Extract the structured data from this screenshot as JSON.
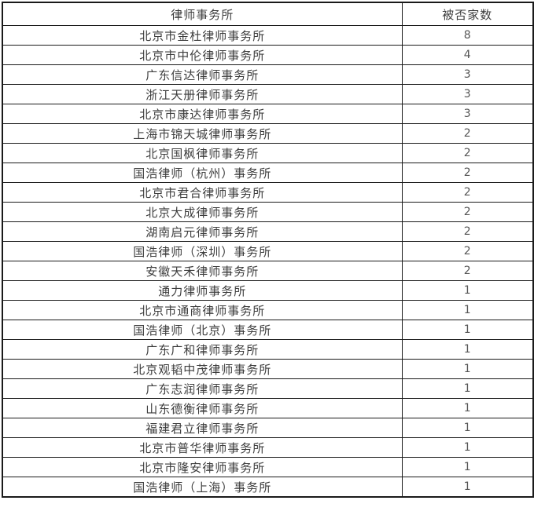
{
  "colors": {
    "border": "#1a1a1a",
    "text": "#3d3d3d",
    "count_text": "#555555",
    "background": "#ffffff"
  },
  "table": {
    "columns": {
      "firm": "律师事务所",
      "count": "被否家数"
    },
    "rows": [
      {
        "firm": "北京市金杜律师事务所",
        "count": "8"
      },
      {
        "firm": "北京市中伦律师事务所",
        "count": "4"
      },
      {
        "firm": "广东信达律师事务所",
        "count": "3"
      },
      {
        "firm": "浙江天册律师事务所",
        "count": "3"
      },
      {
        "firm": "北京市康达律师事务所",
        "count": "3"
      },
      {
        "firm": "上海市锦天城律师事务所",
        "count": "2"
      },
      {
        "firm": "北京国枫律师事务所",
        "count": "2"
      },
      {
        "firm": "国浩律师（杭州）事务所",
        "count": "2"
      },
      {
        "firm": "北京市君合律师事务所",
        "count": "2"
      },
      {
        "firm": "北京大成律师事务所",
        "count": "2"
      },
      {
        "firm": "湖南启元律师事务所",
        "count": "2"
      },
      {
        "firm": "国浩律师（深圳）事务所",
        "count": "2"
      },
      {
        "firm": "安徽天禾律师事务所",
        "count": "2"
      },
      {
        "firm": "通力律师事务所",
        "count": "1"
      },
      {
        "firm": "北京市通商律师事务所",
        "count": "1"
      },
      {
        "firm": "国浩律师（北京）事务所",
        "count": "1"
      },
      {
        "firm": "广东广和律师事务所",
        "count": "1"
      },
      {
        "firm": "北京观韬中茂律师事务所",
        "count": "1"
      },
      {
        "firm": "广东志润律师事务所",
        "count": "1"
      },
      {
        "firm": "山东德衡律师事务所",
        "count": "1"
      },
      {
        "firm": "福建君立律师事务所",
        "count": "1"
      },
      {
        "firm": "北京市普华律师事务所",
        "count": "1"
      },
      {
        "firm": "北京市隆安律师事务所",
        "count": "1"
      },
      {
        "firm": "国浩律师（上海）事务所",
        "count": "1"
      }
    ]
  },
  "chart_data": {
    "type": "table",
    "title": "",
    "columns": [
      "律师事务所",
      "被否家数"
    ],
    "rows": [
      [
        "北京市金杜律师事务所",
        8
      ],
      [
        "北京市中伦律师事务所",
        4
      ],
      [
        "广东信达律师事务所",
        3
      ],
      [
        "浙江天册律师事务所",
        3
      ],
      [
        "北京市康达律师事务所",
        3
      ],
      [
        "上海市锦天城律师事务所",
        2
      ],
      [
        "北京国枫律师事务所",
        2
      ],
      [
        "国浩律师（杭州）事务所",
        2
      ],
      [
        "北京市君合律师事务所",
        2
      ],
      [
        "北京大成律师事务所",
        2
      ],
      [
        "湖南启元律师事务所",
        2
      ],
      [
        "国浩律师（深圳）事务所",
        2
      ],
      [
        "安徽天禾律师事务所",
        2
      ],
      [
        "通力律师事务所",
        1
      ],
      [
        "北京市通商律师事务所",
        1
      ],
      [
        "国浩律师（北京）事务所",
        1
      ],
      [
        "广东广和律师事务所",
        1
      ],
      [
        "北京观韬中茂律师事务所",
        1
      ],
      [
        "广东志润律师事务所",
        1
      ],
      [
        "山东德衡律师事务所",
        1
      ],
      [
        "福建君立律师事务所",
        1
      ],
      [
        "北京市普华律师事务所",
        1
      ],
      [
        "北京市隆安律师事务所",
        1
      ],
      [
        "国浩律师（上海）事务所",
        1
      ]
    ]
  }
}
